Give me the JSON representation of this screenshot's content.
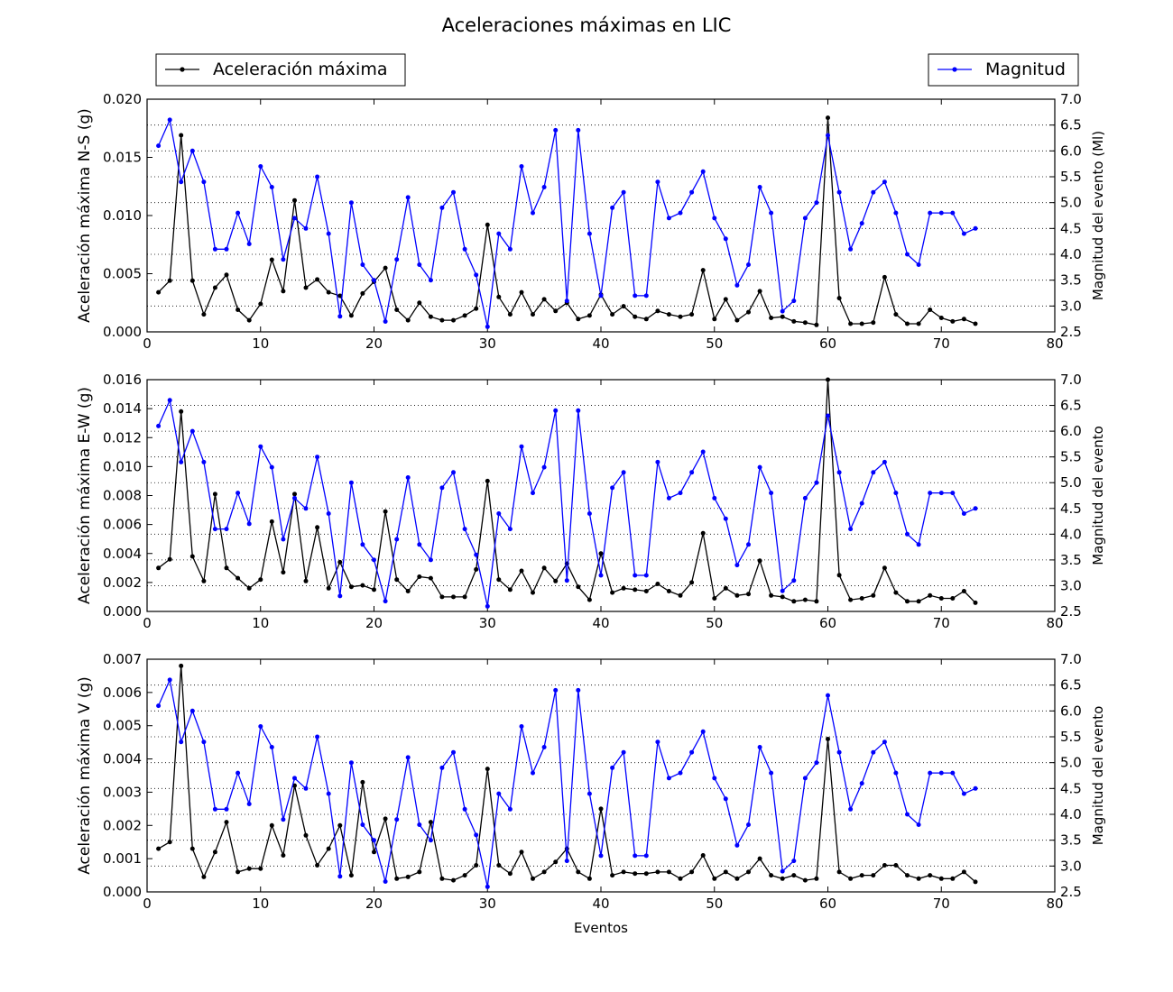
{
  "title": "Aceleraciones máximas en LIC",
  "legend": {
    "left_label": "Aceleración máxima",
    "right_label": "Magnitud",
    "left_color": "#000000",
    "right_color": "#0000ff"
  },
  "colors": {
    "accel": "#000000",
    "magnitude": "#0000ff",
    "grid": "#000000"
  },
  "chart_data": [
    {
      "type": "line",
      "title": "Aceleraciones máximas en LIC",
      "xlabel": "",
      "ylabel": "Aceleración máxima N-S (g)",
      "y2label": "Magnitud del evento (Ml)",
      "xlim": [
        0,
        80
      ],
      "xticks": [
        "0",
        "10",
        "20",
        "30",
        "40",
        "50",
        "60",
        "70",
        "80"
      ],
      "ylim": [
        0,
        0.02
      ],
      "yticks": [
        "0.000",
        "0.005",
        "0.010",
        "0.015",
        "0.020"
      ],
      "y2lim": [
        2.5,
        7.0
      ],
      "y2ticks": [
        "2.5",
        "3.0",
        "3.5",
        "4.0",
        "4.5",
        "5.0",
        "5.5",
        "6.0",
        "6.5",
        "7.0"
      ],
      "grid": "horizontal dotted on secondary axis",
      "x": [
        1,
        2,
        3,
        4,
        5,
        6,
        7,
        8,
        9,
        10,
        11,
        12,
        13,
        14,
        15,
        16,
        17,
        18,
        19,
        20,
        21,
        22,
        23,
        24,
        25,
        26,
        27,
        28,
        29,
        30,
        31,
        32,
        33,
        34,
        35,
        36,
        37,
        38,
        39,
        40,
        41,
        42,
        43,
        44,
        45,
        46,
        47,
        48,
        49,
        50,
        51,
        52,
        53,
        54,
        55,
        56,
        57,
        58,
        59,
        60,
        61,
        62,
        63,
        64,
        65,
        66,
        67,
        68,
        69,
        70,
        71,
        72,
        73
      ],
      "series": [
        {
          "name": "Aceleración máxima",
          "axis": "left",
          "values": [
            0.0034,
            0.0044,
            0.0169,
            0.0044,
            0.0015,
            0.0038,
            0.0049,
            0.0019,
            0.001,
            0.0024,
            0.0062,
            0.0035,
            0.0113,
            0.0038,
            0.0045,
            0.0034,
            0.0031,
            0.0014,
            0.0033,
            0.0043,
            0.0055,
            0.0019,
            0.001,
            0.0025,
            0.0013,
            0.001,
            0.001,
            0.0014,
            0.002,
            0.0092,
            0.003,
            0.0015,
            0.0034,
            0.0015,
            0.0028,
            0.0018,
            0.0025,
            0.0011,
            0.0014,
            0.0032,
            0.0015,
            0.0022,
            0.0013,
            0.0011,
            0.0018,
            0.0015,
            0.0013,
            0.0015,
            0.0053,
            0.0011,
            0.0028,
            0.001,
            0.0017,
            0.0035,
            0.0012,
            0.0013,
            0.0009,
            0.0008,
            0.0006,
            0.0184,
            0.0029,
            0.0007,
            0.0007,
            0.0008,
            0.0047,
            0.0015,
            0.0007,
            0.0007,
            0.0019,
            0.0012,
            0.0009,
            0.0011,
            0.0007
          ]
        },
        {
          "name": "Magnitud",
          "axis": "right",
          "values": [
            6.1,
            6.6,
            5.4,
            6.0,
            5.4,
            4.1,
            4.1,
            4.8,
            4.2,
            5.7,
            5.3,
            3.9,
            4.7,
            4.5,
            5.5,
            4.4,
            2.8,
            5.0,
            3.8,
            3.5,
            2.7,
            3.9,
            5.1,
            3.8,
            3.5,
            4.9,
            5.2,
            4.1,
            3.6,
            2.6,
            4.4,
            4.1,
            5.7,
            4.8,
            5.3,
            6.4,
            3.1,
            6.4,
            4.4,
            3.2,
            4.9,
            5.2,
            3.2,
            3.2,
            5.4,
            4.7,
            4.8,
            5.2,
            5.6,
            4.7,
            4.3,
            3.4,
            3.8,
            5.3,
            4.8,
            2.9,
            3.1,
            4.7,
            5.0,
            6.3,
            5.2,
            4.1,
            4.6,
            5.2,
            5.4,
            4.8,
            4.0,
            3.8,
            4.8,
            4.8,
            4.8,
            4.4,
            4.5
          ]
        }
      ]
    },
    {
      "type": "line",
      "xlabel": "",
      "ylabel": "Aceleración máxima E-W (g)",
      "y2label": "Magnitud del evento",
      "xlim": [
        0,
        80
      ],
      "xticks": [
        "0",
        "10",
        "20",
        "30",
        "40",
        "50",
        "60",
        "70",
        "80"
      ],
      "ylim": [
        0,
        0.016
      ],
      "yticks": [
        "0.000",
        "0.002",
        "0.004",
        "0.006",
        "0.008",
        "0.010",
        "0.012",
        "0.014",
        "0.016"
      ],
      "y2lim": [
        2.5,
        7.0
      ],
      "y2ticks": [
        "2.5",
        "3.0",
        "3.5",
        "4.0",
        "4.5",
        "5.0",
        "5.5",
        "6.0",
        "6.5",
        "7.0"
      ],
      "grid": "horizontal dotted on secondary axis",
      "x": [
        1,
        2,
        3,
        4,
        5,
        6,
        7,
        8,
        9,
        10,
        11,
        12,
        13,
        14,
        15,
        16,
        17,
        18,
        19,
        20,
        21,
        22,
        23,
        24,
        25,
        26,
        27,
        28,
        29,
        30,
        31,
        32,
        33,
        34,
        35,
        36,
        37,
        38,
        39,
        40,
        41,
        42,
        43,
        44,
        45,
        46,
        47,
        48,
        49,
        50,
        51,
        52,
        53,
        54,
        55,
        56,
        57,
        58,
        59,
        60,
        61,
        62,
        63,
        64,
        65,
        66,
        67,
        68,
        69,
        70,
        71,
        72,
        73
      ],
      "series": [
        {
          "name": "Aceleración máxima",
          "axis": "left",
          "values": [
            0.003,
            0.0036,
            0.0138,
            0.0038,
            0.0021,
            0.0081,
            0.003,
            0.0023,
            0.0016,
            0.0022,
            0.0062,
            0.0027,
            0.0081,
            0.0021,
            0.0058,
            0.0016,
            0.0034,
            0.0017,
            0.0018,
            0.0015,
            0.0069,
            0.0022,
            0.0014,
            0.0024,
            0.0023,
            0.001,
            0.001,
            0.001,
            0.0029,
            0.009,
            0.0022,
            0.0015,
            0.0028,
            0.0013,
            0.003,
            0.0021,
            0.0033,
            0.0017,
            0.0008,
            0.004,
            0.0013,
            0.0016,
            0.0015,
            0.0014,
            0.0019,
            0.0014,
            0.0011,
            0.002,
            0.0054,
            0.0009,
            0.0016,
            0.0011,
            0.0012,
            0.0035,
            0.0011,
            0.001,
            0.0007,
            0.0008,
            0.0007,
            0.016,
            0.0025,
            0.0008,
            0.0009,
            0.0011,
            0.003,
            0.0013,
            0.0007,
            0.0007,
            0.0011,
            0.0009,
            0.0009,
            0.0014,
            0.0006
          ]
        },
        {
          "name": "Magnitud",
          "axis": "right",
          "values": [
            6.1,
            6.6,
            5.4,
            6.0,
            5.4,
            4.1,
            4.1,
            4.8,
            4.2,
            5.7,
            5.3,
            3.9,
            4.7,
            4.5,
            5.5,
            4.4,
            2.8,
            5.0,
            3.8,
            3.5,
            2.7,
            3.9,
            5.1,
            3.8,
            3.5,
            4.9,
            5.2,
            4.1,
            3.6,
            2.6,
            4.4,
            4.1,
            5.7,
            4.8,
            5.3,
            6.4,
            3.1,
            6.4,
            4.4,
            3.2,
            4.9,
            5.2,
            3.2,
            3.2,
            5.4,
            4.7,
            4.8,
            5.2,
            5.6,
            4.7,
            4.3,
            3.4,
            3.8,
            5.3,
            4.8,
            2.9,
            3.1,
            4.7,
            5.0,
            6.3,
            5.2,
            4.1,
            4.6,
            5.2,
            5.4,
            4.8,
            4.0,
            3.8,
            4.8,
            4.8,
            4.8,
            4.4,
            4.5
          ]
        }
      ]
    },
    {
      "type": "line",
      "xlabel": "Eventos",
      "ylabel": "Aceleración máxima V (g)",
      "y2label": "Magnitud del evento",
      "xlim": [
        0,
        80
      ],
      "xticks": [
        "0",
        "10",
        "20",
        "30",
        "40",
        "50",
        "60",
        "70",
        "80"
      ],
      "ylim": [
        0,
        0.007
      ],
      "yticks": [
        "0.000",
        "0.001",
        "0.002",
        "0.003",
        "0.004",
        "0.005",
        "0.006",
        "0.007"
      ],
      "y2lim": [
        2.5,
        7.0
      ],
      "y2ticks": [
        "2.5",
        "3.0",
        "3.5",
        "4.0",
        "4.5",
        "5.0",
        "5.5",
        "6.0",
        "6.5",
        "7.0"
      ],
      "grid": "horizontal dotted on secondary axis",
      "x": [
        1,
        2,
        3,
        4,
        5,
        6,
        7,
        8,
        9,
        10,
        11,
        12,
        13,
        14,
        15,
        16,
        17,
        18,
        19,
        20,
        21,
        22,
        23,
        24,
        25,
        26,
        27,
        28,
        29,
        30,
        31,
        32,
        33,
        34,
        35,
        36,
        37,
        38,
        39,
        40,
        41,
        42,
        43,
        44,
        45,
        46,
        47,
        48,
        49,
        50,
        51,
        52,
        53,
        54,
        55,
        56,
        57,
        58,
        59,
        60,
        61,
        62,
        63,
        64,
        65,
        66,
        67,
        68,
        69,
        70,
        71,
        72,
        73
      ],
      "series": [
        {
          "name": "Aceleración máxima",
          "axis": "left",
          "values": [
            0.0013,
            0.0015,
            0.0068,
            0.0013,
            0.00045,
            0.0012,
            0.0021,
            0.0006,
            0.0007,
            0.0007,
            0.002,
            0.0011,
            0.0032,
            0.0017,
            0.0008,
            0.0013,
            0.002,
            0.0005,
            0.0033,
            0.0012,
            0.0022,
            0.0004,
            0.00045,
            0.0006,
            0.0021,
            0.0004,
            0.00035,
            0.0005,
            0.0008,
            0.0037,
            0.0008,
            0.00055,
            0.0012,
            0.0004,
            0.0006,
            0.0009,
            0.0013,
            0.0006,
            0.0004,
            0.0025,
            0.0005,
            0.0006,
            0.00055,
            0.00055,
            0.0006,
            0.0006,
            0.0004,
            0.0006,
            0.0011,
            0.0004,
            0.0006,
            0.0004,
            0.0006,
            0.001,
            0.0005,
            0.0004,
            0.0005,
            0.00035,
            0.0004,
            0.0046,
            0.0006,
            0.0004,
            0.0005,
            0.0005,
            0.0008,
            0.0008,
            0.0005,
            0.0004,
            0.0005,
            0.0004,
            0.0004,
            0.0006,
            0.0003
          ]
        },
        {
          "name": "Magnitud",
          "axis": "right",
          "values": [
            6.1,
            6.6,
            5.4,
            6.0,
            5.4,
            4.1,
            4.1,
            4.8,
            4.2,
            5.7,
            5.3,
            3.9,
            4.7,
            4.5,
            5.5,
            4.4,
            2.8,
            5.0,
            3.8,
            3.5,
            2.7,
            3.9,
            5.1,
            3.8,
            3.5,
            4.9,
            5.2,
            4.1,
            3.6,
            2.6,
            4.4,
            4.1,
            5.7,
            4.8,
            5.3,
            6.4,
            3.1,
            6.4,
            4.4,
            3.2,
            4.9,
            5.2,
            3.2,
            3.2,
            5.4,
            4.7,
            4.8,
            5.2,
            5.6,
            4.7,
            4.3,
            3.4,
            3.8,
            5.3,
            4.8,
            2.9,
            3.1,
            4.7,
            5.0,
            6.3,
            5.2,
            4.1,
            4.6,
            5.2,
            5.4,
            4.8,
            4.0,
            3.8,
            4.8,
            4.8,
            4.8,
            4.4,
            4.5
          ]
        }
      ]
    }
  ]
}
